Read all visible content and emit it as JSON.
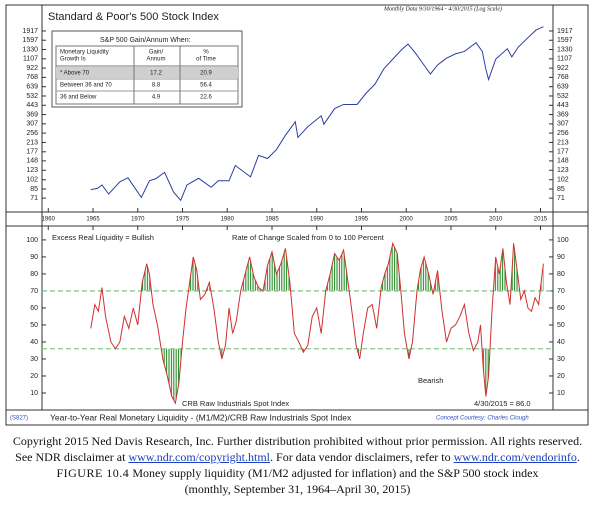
{
  "chart_data": [
    {
      "type": "line",
      "title": "Standard & Poor's 500 Stock Index",
      "note": "Monthly Data 9/30/1964 - 4/30/2015 (Log Scale)",
      "log_scale": true,
      "color": "#2b3fa0",
      "x": [
        1964.75,
        1965.5,
        1966,
        1966.75,
        1968,
        1968.9,
        1970.4,
        1971.3,
        1972,
        1973,
        1974,
        1974.8,
        1975.5,
        1976.8,
        1978.2,
        1979,
        1980.2,
        1980.9,
        1982.6,
        1983.5,
        1984.5,
        1985.5,
        1986.5,
        1987.6,
        1987.9,
        1989,
        1990.5,
        1990.8,
        1992,
        1993,
        1994.5,
        1995.5,
        1996.5,
        1997.5,
        1998.5,
        1999.5,
        2000.2,
        2001,
        2001.7,
        2002.7,
        2003.5,
        2004.5,
        2005.5,
        2006.5,
        2007.8,
        2008.5,
        2008.9,
        2009.2,
        2010,
        2011.3,
        2011.8,
        2012.5,
        2013.5,
        2014.5,
        2015.33
      ],
      "values": [
        84,
        86,
        92,
        77,
        98,
        106,
        72,
        100,
        104,
        118,
        80,
        68,
        92,
        105,
        88,
        100,
        100,
        135,
        108,
        165,
        155,
        185,
        245,
        320,
        235,
        290,
        360,
        305,
        415,
        450,
        450,
        560,
        670,
        910,
        1100,
        1330,
        1480,
        1250,
        1050,
        820,
        980,
        1120,
        1220,
        1280,
        1520,
        1280,
        900,
        735,
        1100,
        1350,
        1150,
        1390,
        1650,
        1950,
        2085
      ],
      "xlim": [
        1959.3,
        2016.4
      ],
      "xticks": [
        1960,
        1965,
        1970,
        1975,
        1980,
        1985,
        1990,
        1995,
        2000,
        2005,
        2010,
        2015
      ],
      "ylim": [
        62,
        2380
      ],
      "yticks": [
        1917,
        1597,
        1330,
        1107,
        922,
        768,
        639,
        532,
        443,
        369,
        307,
        256,
        213,
        177,
        148,
        123,
        102,
        85,
        71
      ]
    },
    {
      "type": "line",
      "title": "Year-to-Year Real Monetary Liquidity - (M1/M2)/CRB Raw Industrials Spot Index",
      "source_code": "(S827)",
      "credit": "Concept Courtesy: Charles Clough",
      "color": "#d03030",
      "band_color": "#2a8a2a",
      "reference_lines": [
        70,
        36
      ],
      "annotations": [
        "Excess Real Liquidity = Bullish",
        "Rate of Change Scaled from 0 to 100 Percent",
        "Bearish",
        "CRB Raw Industrials Spot Index",
        "4/30/2015 = 86.0"
      ],
      "x": [
        1964.75,
        1965.2,
        1965.6,
        1966,
        1966.4,
        1967,
        1967.5,
        1968,
        1968.5,
        1969,
        1969.5,
        1970,
        1970.5,
        1971,
        1971.3,
        1971.7,
        1972.2,
        1972.8,
        1973.3,
        1973.8,
        1974.2,
        1974.6,
        1975,
        1975.4,
        1975.8,
        1976.2,
        1976.6,
        1977,
        1977.5,
        1978,
        1978.5,
        1979,
        1979.4,
        1979.8,
        1980.2,
        1980.6,
        1981,
        1981.5,
        1982,
        1982.5,
        1983,
        1983.5,
        1984,
        1984.5,
        1985,
        1985.5,
        1986,
        1986.5,
        1987,
        1987.5,
        1988,
        1988.5,
        1989,
        1989.5,
        1990,
        1990.5,
        1991,
        1991.5,
        1992,
        1992.5,
        1993,
        1993.5,
        1994,
        1994.4,
        1994.8,
        1995.2,
        1995.7,
        1996.2,
        1996.7,
        1997.2,
        1997.6,
        1998,
        1998.5,
        1999,
        1999.4,
        1999.8,
        2000.3,
        2000.7,
        2001.2,
        2001.6,
        2002,
        2002.5,
        2003,
        2003.5,
        2004,
        2004.5,
        2005,
        2005.5,
        2006,
        2006.5,
        2007,
        2007.5,
        2008,
        2008.3,
        2008.6,
        2008.9,
        2009.2,
        2009.6,
        2010,
        2010.4,
        2010.8,
        2011.2,
        2011.6,
        2012,
        2012.4,
        2012.8,
        2013.2,
        2013.6,
        2014,
        2014.4,
        2014.8,
        2015,
        2015.33
      ],
      "values": [
        48,
        62,
        58,
        72,
        55,
        40,
        36,
        40,
        55,
        48,
        60,
        50,
        75,
        86,
        80,
        62,
        50,
        30,
        20,
        8,
        4,
        16,
        40,
        60,
        75,
        90,
        82,
        65,
        68,
        75,
        60,
        40,
        30,
        38,
        60,
        45,
        52,
        70,
        80,
        90,
        78,
        72,
        70,
        85,
        93,
        80,
        86,
        95,
        75,
        45,
        40,
        34,
        38,
        55,
        60,
        45,
        70,
        80,
        92,
        88,
        94,
        75,
        55,
        38,
        30,
        45,
        60,
        62,
        48,
        72,
        80,
        86,
        98,
        92,
        70,
        45,
        30,
        40,
        70,
        83,
        90,
        80,
        68,
        82,
        58,
        40,
        48,
        50,
        55,
        62,
        45,
        35,
        40,
        50,
        25,
        8,
        20,
        60,
        90,
        80,
        95,
        75,
        62,
        98,
        82,
        65,
        70,
        60,
        58,
        66,
        62,
        72,
        86
      ],
      "xlim": [
        1959.3,
        2016.4
      ],
      "ylim": [
        0,
        107
      ],
      "yticks": [
        10,
        20,
        30,
        40,
        50,
        60,
        70,
        80,
        90,
        100
      ]
    }
  ],
  "table": {
    "title": "S&P 500 Gain/Annum When:",
    "header": [
      [
        "Monetary Liquidity",
        "Growth Is"
      ],
      [
        "Gain/",
        "Annum"
      ],
      [
        "%",
        "of Time"
      ]
    ],
    "rows": [
      [
        "* Above 70",
        17.2,
        20.9
      ],
      [
        "Between 36 and 70",
        8.8,
        56.4
      ],
      [
        "36 and Below",
        4.9,
        22.6
      ]
    ]
  },
  "caption": {
    "copyright": "Copyright 2015 Ned Davis Research, Inc. Further distribution prohibited without prior permission. All rights reserved.",
    "disclaimer": [
      "See NDR disclaimer at ",
      "www.ndr.com/copyright.html",
      ". For data vendor disclaimers, refer to ",
      "www.ndr.com/vendorinfo",
      "."
    ],
    "figure_label": "FIGURE 10.4",
    "figure_text": "Money supply liquidity (M1/M2 adjusted for inflation) and the S&P 500 stock index",
    "figure_dates": "(monthly, September 31, 1964–April 30, 2015)"
  }
}
